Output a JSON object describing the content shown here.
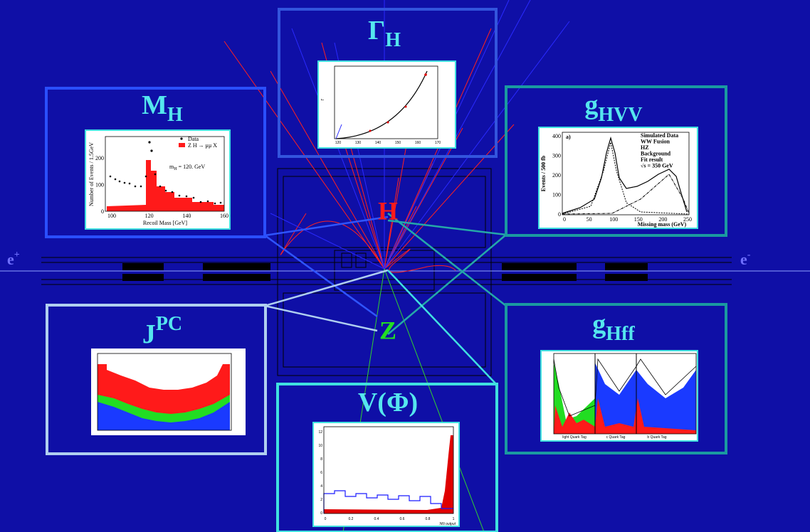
{
  "beam": {
    "left": {
      "base": "e",
      "sup": "+"
    },
    "right": {
      "base": "e",
      "sup": "-"
    }
  },
  "vertex_labels": {
    "higgs": "H",
    "z": "Z"
  },
  "panels": {
    "mass": {
      "title": {
        "base": "M",
        "sub": "H"
      },
      "plot": {
        "legend": [
          "Data",
          "Z H → μμ X"
        ],
        "annotation": {
          "base": "m",
          "sub": "H",
          "rest": " =  120. GeV"
        },
        "x_label": "Recoil Mass  [GeV]",
        "y_label": "Number of Events / 1.5GeV",
        "x_ticks": [
          100,
          120,
          140,
          160
        ],
        "y_ticks": [
          0,
          100,
          200
        ]
      }
    },
    "width": {
      "title": {
        "base": "Γ",
        "sub": "H"
      },
      "plot": {
        "x_ticks": [
          120,
          130,
          140,
          150,
          160,
          170
        ]
      }
    },
    "hvv": {
      "title": {
        "base": "g",
        "sub": "HVV"
      },
      "plot": {
        "tag": "a)",
        "legend": [
          "Simulated Data",
          "WW Fusion",
          "HZ",
          "Background",
          "Fit result",
          "√s = 350 GeV"
        ],
        "x_label": "Missing mass (GeV)",
        "y_label": "Events / 500 fb",
        "x_ticks": [
          0,
          50,
          100,
          150,
          200,
          250
        ],
        "y_ticks": [
          0,
          100,
          200,
          300,
          400
        ]
      }
    },
    "spin": {
      "title": {
        "base": "J",
        "sup": "PC"
      }
    },
    "potential": {
      "title": "V(Φ)",
      "plot": {
        "x_label": "NN output",
        "x_ticks": [
          0,
          0.2,
          0.4,
          0.6,
          0.8,
          1
        ],
        "y_ticks": [
          0,
          2,
          4,
          6,
          8,
          10,
          12
        ]
      }
    },
    "hff": {
      "title": {
        "base": "g",
        "sub": "Hff"
      },
      "plot": {
        "x_labels": [
          "light Quark Tag",
          "c Quark Tag",
          "b Quark Tag"
        ]
      }
    }
  }
}
